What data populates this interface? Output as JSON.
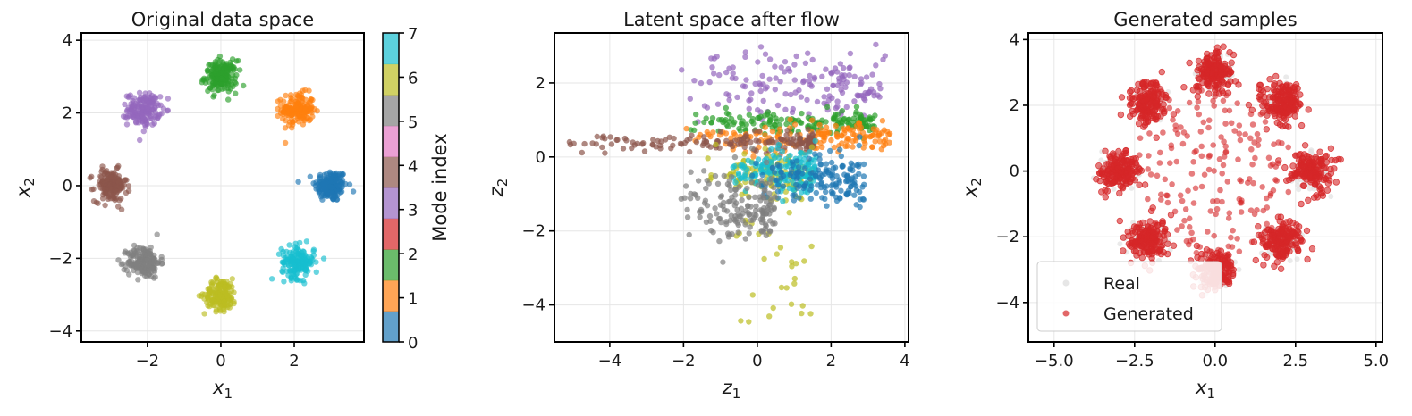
{
  "chart_data": [
    {
      "type": "scatter",
      "title": "Original data space",
      "xlabel": "x",
      "xlabel_sub": "1",
      "ylabel": "x",
      "ylabel_sub": "2",
      "xlim": [
        -3.8,
        3.9
      ],
      "ylim": [
        -4.3,
        4.2
      ],
      "xticks": [
        -2,
        0,
        2
      ],
      "yticks": [
        -4,
        -2,
        0,
        2,
        4
      ],
      "grid": true,
      "colormap": [
        "#1f77b4",
        "#ff7f0e",
        "#2ca02c",
        "#d62728",
        "#9467bd",
        "#8c564b",
        "#e377c2",
        "#7f7f7f",
        "#bcbd22",
        "#17becf"
      ],
      "clusters": [
        {
          "mode": 0,
          "center": [
            3.0,
            0.0
          ],
          "std": 0.22
        },
        {
          "mode": 1,
          "center": [
            2.1,
            2.1
          ],
          "std": 0.22
        },
        {
          "mode": 2,
          "center": [
            0.0,
            3.0
          ],
          "std": 0.22
        },
        {
          "mode": 4,
          "center": [
            -2.1,
            2.1
          ],
          "std": 0.22
        },
        {
          "mode": 5,
          "center": [
            -3.0,
            0.0
          ],
          "std": 0.22
        },
        {
          "mode": 7,
          "center": [
            -2.1,
            -2.1
          ],
          "std": 0.22
        },
        {
          "mode": 8,
          "center": [
            0.0,
            -3.0
          ],
          "std": 0.22
        },
        {
          "mode": 9,
          "center": [
            2.1,
            -2.1
          ],
          "std": 0.22
        }
      ],
      "colorbar": {
        "label": "Mode index",
        "ticks": [
          "0",
          "1",
          "2",
          "3",
          "4",
          "5",
          "6",
          "7"
        ],
        "colors": [
          "#1f77b4",
          "#ff7f0e",
          "#2ca02c",
          "#d62728",
          "#9467bd",
          "#8c564b",
          "#e377c2",
          "#7f7f7f",
          "#bcbd22",
          "#17becf"
        ]
      }
    },
    {
      "type": "scatter",
      "title": "Latent space after flow",
      "xlabel": "z",
      "xlabel_sub": "1",
      "ylabel": "z",
      "ylabel_sub": "2",
      "xlim": [
        -5.5,
        4.1
      ],
      "ylim": [
        -5.0,
        3.35
      ],
      "xticks": [
        -4,
        -2,
        0,
        2,
        4
      ],
      "yticks": [
        -4,
        -2,
        0,
        2
      ],
      "grid": true,
      "groups": [
        {
          "mode": 4,
          "color": "#9467bd",
          "x_range": [
            -2.2,
            3.5
          ],
          "y_center": 1.9,
          "y_std": 0.45
        },
        {
          "mode": 2,
          "color": "#2ca02c",
          "x_range": [
            -2.2,
            3.2
          ],
          "y_center": 0.95,
          "y_std": 0.15
        },
        {
          "mode": 1,
          "color": "#ff7f0e",
          "x_range": [
            -2.0,
            3.6
          ],
          "y_center": 0.55,
          "y_std": 0.18
        },
        {
          "mode": 5,
          "color": "#8c564b",
          "x_range": [
            -5.1,
            1.5
          ],
          "y_center": 0.4,
          "y_std": 0.12
        },
        {
          "mode": 8,
          "color": "#bcbd22",
          "x_range": [
            -1.5,
            1.5
          ],
          "y_center": -0.5,
          "y_std": 0.3
        },
        {
          "mode": 9,
          "color": "#17becf",
          "x_range": [
            -0.8,
            1.6
          ],
          "y_center": -0.4,
          "y_std": 0.3
        },
        {
          "mode": 0,
          "color": "#1f77b4",
          "x_range": [
            -0.2,
            2.9
          ],
          "y_center": -0.6,
          "y_std": 0.35
        },
        {
          "mode": 7,
          "color": "#7f7f7f",
          "x_range": [
            -2.2,
            0.5
          ],
          "y_center": -1.4,
          "y_std": 0.45
        }
      ]
    },
    {
      "type": "scatter",
      "title": "Generated samples",
      "xlabel": "x",
      "xlabel_sub": "1",
      "ylabel": "x",
      "ylabel_sub": "2",
      "xlim": [
        -5.8,
        5.2
      ],
      "ylim": [
        -5.2,
        4.2
      ],
      "xticks": [
        -5.0,
        -2.5,
        0.0,
        2.5,
        5.0
      ],
      "xtick_labels": [
        "−5.0",
        "−2.5",
        "0.0",
        "2.5",
        "5.0"
      ],
      "yticks": [
        -4,
        -2,
        0,
        2,
        4
      ],
      "grid": true,
      "series": [
        {
          "name": "Real",
          "color": "#dcdcdc"
        },
        {
          "name": "Generated",
          "color": "#d62728"
        }
      ],
      "legend_position": "lower-left",
      "clusters": [
        [
          3.0,
          0.0
        ],
        [
          2.1,
          2.1
        ],
        [
          0.0,
          3.0
        ],
        [
          -2.1,
          2.1
        ],
        [
          -3.0,
          0.0
        ],
        [
          -2.1,
          -2.1
        ],
        [
          0.0,
          -3.0
        ],
        [
          2.1,
          -2.1
        ]
      ],
      "cluster_std": 0.3
    }
  ]
}
